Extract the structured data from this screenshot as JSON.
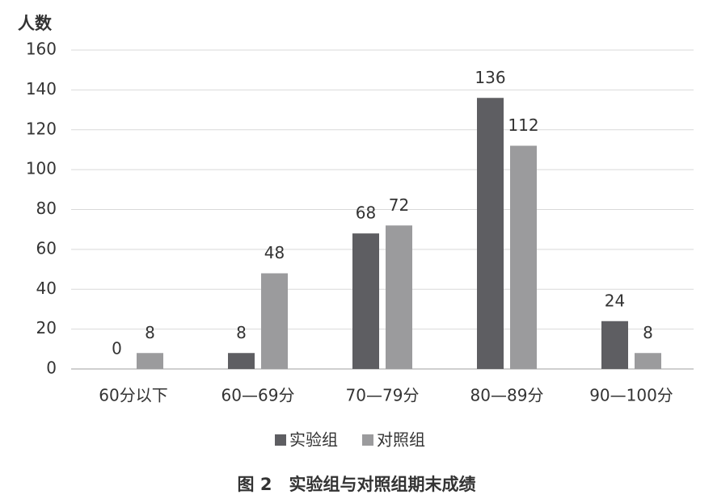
{
  "chart_data": {
    "type": "bar",
    "title": "图 2　实验组与对照组期末成绩",
    "y_label": "人数",
    "categories": [
      "60分以下",
      "60—69分",
      "70—79分",
      "80—89分",
      "90—100分"
    ],
    "series": [
      {
        "name": "实验组",
        "color": "#5e5e62",
        "values": [
          0,
          8,
          68,
          136,
          24
        ]
      },
      {
        "name": "对照组",
        "color": "#9b9b9d",
        "values": [
          8,
          48,
          72,
          112,
          8
        ]
      }
    ],
    "ylim": [
      0,
      160
    ],
    "yticks": [
      0,
      20,
      40,
      60,
      80,
      100,
      120,
      140,
      160
    ],
    "grid": true,
    "legend": "bottom"
  }
}
